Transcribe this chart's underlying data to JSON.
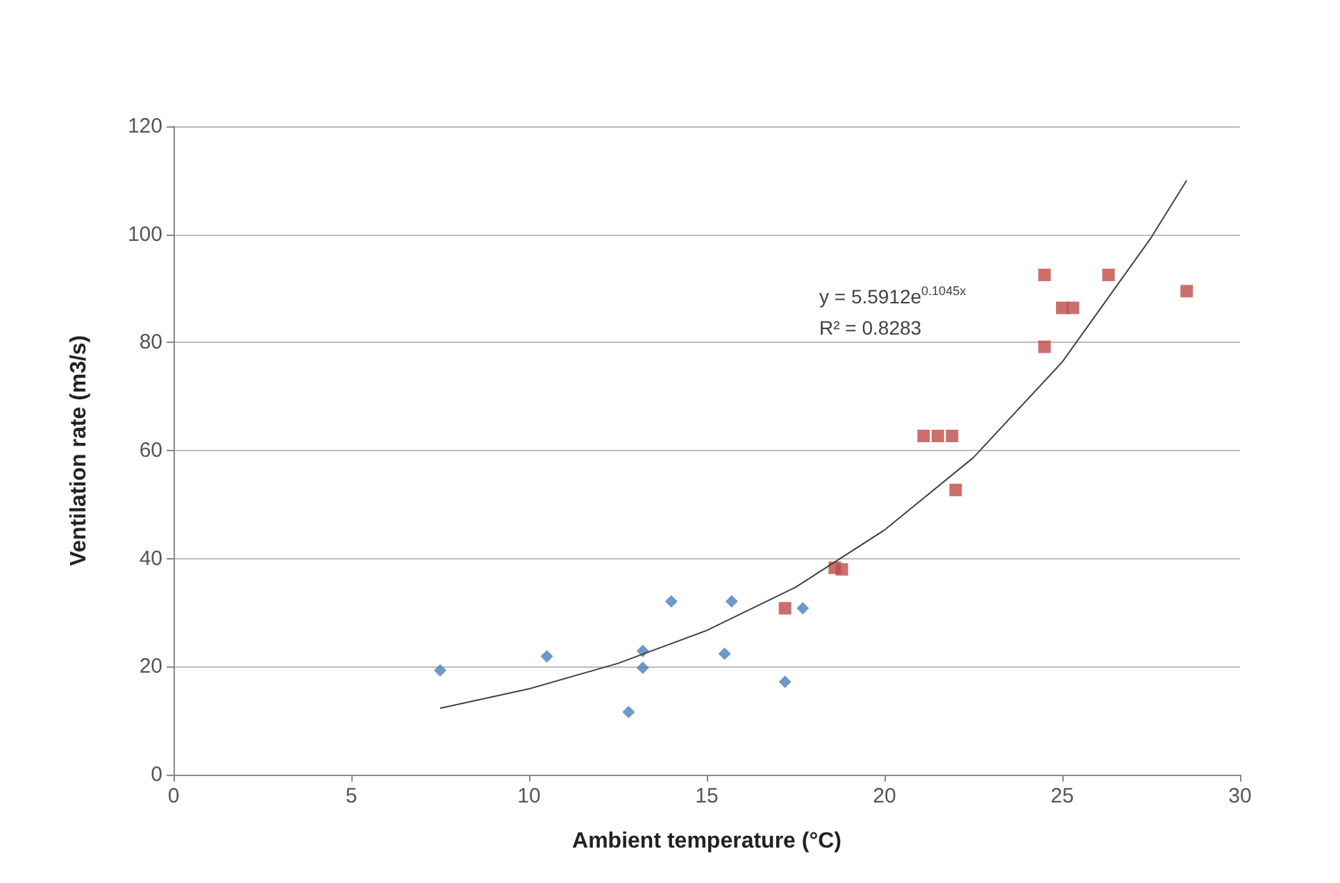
{
  "chart_data": {
    "type": "scatter",
    "xlabel": "Ambient temperature (°C)",
    "ylabel": "Ventilation rate (m3/s)",
    "xlim": [
      0,
      30
    ],
    "xticks": [
      0,
      5,
      10,
      15,
      20,
      25,
      30
    ],
    "ylim": [
      0,
      120
    ],
    "yticks": [
      0,
      20,
      40,
      60,
      80,
      100,
      120
    ],
    "grid": "y",
    "series": [
      {
        "color": "#4a7ebb",
        "marker": "diamond",
        "x": [
          7.5,
          10.5,
          13.2,
          13.2,
          12.8,
          14.0,
          15.5,
          15.7,
          17.2,
          17.7
        ],
        "values": [
          19.3,
          21.9,
          22.9,
          19.8,
          11.6,
          32.1,
          22.4,
          32.1,
          17.2,
          30.8
        ]
      },
      {
        "color": "#be4b48",
        "marker": "square",
        "x": [
          17.2,
          18.6,
          18.8,
          21.1,
          21.5,
          21.9,
          22.0,
          24.5,
          24.5,
          25.0,
          25.3,
          26.3,
          28.5
        ],
        "values": [
          30.8,
          38.3,
          38.0,
          62.7,
          62.7,
          62.7,
          52.7,
          92.5,
          79.2,
          86.4,
          86.4,
          92.5,
          89.5
        ]
      },
      {
        "type": "line",
        "color": "#404040",
        "marker": "none",
        "x": [
          7.5,
          10,
          12.5,
          15,
          17.5,
          20,
          22.5,
          25,
          27.5,
          28.5
        ],
        "values": [
          12.3,
          15.9,
          20.6,
          26.7,
          34.7,
          45.3,
          58.7,
          76.4,
          99.4,
          110
        ]
      }
    ],
    "annotations": [
      "y = 5.5912e$^{0.1045x}$",
      "R² = 0.8283"
    ]
  }
}
